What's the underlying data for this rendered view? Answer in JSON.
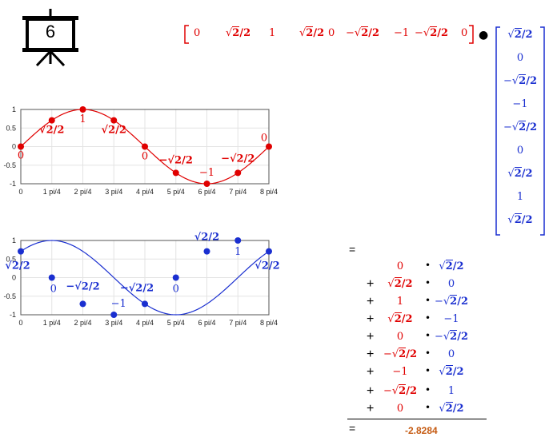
{
  "slide": {
    "number": "6",
    "icon": "presentation-board-icon"
  },
  "row_vector": [
    "0",
    "√2/2",
    "1",
    "√2/2",
    "0",
    "−√2/2",
    "−1",
    "−√2/2",
    "0"
  ],
  "column_vector": [
    "√2/2",
    "0",
    "−√2/2",
    "−1",
    "−√2/2",
    "0",
    "√2/2",
    "1",
    "√2/2"
  ],
  "dot_operator": "●",
  "equals": "=",
  "product_rows": [
    {
      "plus": "",
      "a": "0",
      "op": "•",
      "b": "√2/2"
    },
    {
      "plus": "+",
      "a": "√2/2",
      "op": "•",
      "b": "0"
    },
    {
      "plus": "+",
      "a": "1",
      "op": "•",
      "b": "−√2/2"
    },
    {
      "plus": "+",
      "a": "√2/2",
      "op": "•",
      "b": "−1"
    },
    {
      "plus": "+",
      "a": "0",
      "op": "•",
      "b": "−√2/2"
    },
    {
      "plus": "+",
      "a": "−√2/2",
      "op": "•",
      "b": "0"
    },
    {
      "plus": "+",
      "a": "−1",
      "op": "•",
      "b": "√2/2"
    },
    {
      "plus": "+",
      "a": "−√2/2",
      "op": "•",
      "b": "1"
    },
    {
      "plus": "+",
      "a": "0",
      "op": "•",
      "b": "√2/2"
    }
  ],
  "result": "-2.8284",
  "colors": {
    "red": "#e00000",
    "blue": "#1a2fd0",
    "orange": "#c55a11"
  },
  "chart_data": [
    {
      "type": "line",
      "title": "",
      "x_tick_labels": [
        "0",
        "1 pi/4",
        "2 pi/4",
        "3 pi/4",
        "4 pi/4",
        "5 pi/4",
        "6 pi/4",
        "7 pi/4",
        "8 pi/4"
      ],
      "y_tick_labels": [
        "1",
        "0.5",
        "0",
        "-0.5",
        "-1"
      ],
      "ylim": [
        -1,
        1
      ],
      "xlim": [
        0,
        8
      ],
      "grid": true,
      "series": [
        {
          "color": "#e00000",
          "x": [
            0,
            1,
            2,
            3,
            4,
            5,
            6,
            7,
            8
          ],
          "y": [
            0,
            0.7071,
            1,
            0.7071,
            0,
            -0.7071,
            -1,
            -0.7071,
            0
          ]
        }
      ],
      "point_labels": [
        "0",
        "√2/2",
        "1",
        "√2/2",
        "0",
        "−√2/2",
        "−1",
        "−√2/2",
        "0"
      ]
    },
    {
      "type": "line",
      "title": "",
      "x_tick_labels": [
        "0",
        "1 pi/4",
        "2 pi/4",
        "3 pi/4",
        "4 pi/4",
        "5 pi/4",
        "6 pi/4",
        "7 pi/4",
        "8 pi/4"
      ],
      "y_tick_labels": [
        "1",
        "0.5",
        "0",
        "-0.5",
        "-1"
      ],
      "ylim": [
        -1,
        1
      ],
      "xlim": [
        0,
        8
      ],
      "grid": true,
      "series": [
        {
          "color": "#1a2fd0",
          "x": [
            0,
            1,
            2,
            3,
            4,
            5,
            6,
            7,
            8
          ],
          "y": [
            0.7071,
            0,
            -0.7071,
            -1,
            -0.7071,
            0,
            0.7071,
            1,
            0.7071
          ]
        }
      ],
      "point_labels": [
        "√2/2",
        "0",
        "−√2/2",
        "−1",
        "−√2/2",
        "0",
        "√2/2",
        "1",
        "√2/2"
      ]
    }
  ]
}
